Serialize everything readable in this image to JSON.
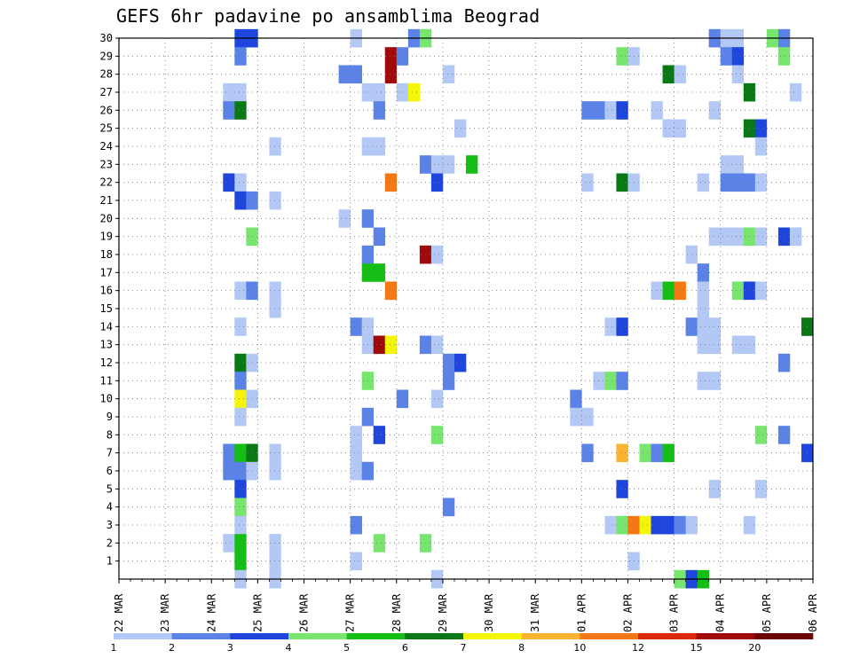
{
  "chart_data": {
    "type": "heatmap",
    "title": "GEFS 6hr padavine po ansamblima Beograd",
    "xlabel": "",
    "ylabel": "",
    "y_ticks": [
      "1",
      "2",
      "3",
      "4",
      "5",
      "6",
      "7",
      "8",
      "9",
      "10",
      "11",
      "12",
      "13",
      "14",
      "15",
      "16",
      "17",
      "18",
      "19",
      "20",
      "21",
      "22",
      "23",
      "24",
      "25",
      "26",
      "27",
      "28",
      "29",
      "30"
    ],
    "x_ticks": [
      "22 MAR",
      "23 MAR",
      "24 MAR",
      "25 MAR",
      "26 MAR",
      "27 MAR",
      "28 MAR",
      "29 MAR",
      "30 MAR",
      "31 MAR",
      "01 APR",
      "02 APR",
      "03 APR",
      "04 APR",
      "05 APR",
      "06 APR"
    ],
    "grid": true,
    "legend_placement": "bottom",
    "legend_labels": [
      "1",
      "2",
      "3",
      "4",
      "5",
      "6",
      "7",
      "8",
      "10",
      "12",
      "15",
      "20"
    ],
    "color_levels": [
      "#b4c8f5",
      "#5b82e6",
      "#1e46dc",
      "#78e66e",
      "#14be14",
      "#0a7814",
      "#f5f50a",
      "#fab432",
      "#f57814",
      "#dc280a",
      "#a00a0a",
      "#6e0505"
    ],
    "cells_note_x_unit": "day offset from 22 MAR 00z (6-hour steps)",
    "cells": [
      {
        "x": 2.5,
        "y": 30,
        "level": 2
      },
      {
        "x": 2.75,
        "y": 30,
        "level": 2
      },
      {
        "x": 5.0,
        "y": 30,
        "level": 0
      },
      {
        "x": 6.25,
        "y": 30,
        "level": 1
      },
      {
        "x": 6.5,
        "y": 30,
        "level": 3
      },
      {
        "x": 12.75,
        "y": 30,
        "level": 1
      },
      {
        "x": 13.0,
        "y": 30,
        "level": 0
      },
      {
        "x": 13.25,
        "y": 30,
        "level": 0
      },
      {
        "x": 14.0,
        "y": 30,
        "level": 3
      },
      {
        "x": 14.25,
        "y": 30,
        "level": 1
      },
      {
        "x": 2.5,
        "y": 29,
        "level": 1
      },
      {
        "x": 5.75,
        "y": 29,
        "level": 10
      },
      {
        "x": 6.0,
        "y": 29,
        "level": 1
      },
      {
        "x": 10.75,
        "y": 29,
        "level": 3
      },
      {
        "x": 11.0,
        "y": 29,
        "level": 0
      },
      {
        "x": 13.0,
        "y": 29,
        "level": 1
      },
      {
        "x": 13.25,
        "y": 29,
        "level": 2
      },
      {
        "x": 14.25,
        "y": 29,
        "level": 3
      },
      {
        "x": 4.75,
        "y": 28,
        "level": 1
      },
      {
        "x": 5.0,
        "y": 28,
        "level": 1
      },
      {
        "x": 5.75,
        "y": 28,
        "level": 10
      },
      {
        "x": 7.0,
        "y": 28,
        "level": 0
      },
      {
        "x": 11.75,
        "y": 28,
        "level": 5
      },
      {
        "x": 12.0,
        "y": 28,
        "level": 0
      },
      {
        "x": 13.25,
        "y": 28,
        "level": 0
      },
      {
        "x": 2.25,
        "y": 27,
        "level": 0
      },
      {
        "x": 2.5,
        "y": 27,
        "level": 0
      },
      {
        "x": 5.25,
        "y": 27,
        "level": 0
      },
      {
        "x": 5.5,
        "y": 27,
        "level": 0
      },
      {
        "x": 6.0,
        "y": 27,
        "level": 0
      },
      {
        "x": 6.25,
        "y": 27,
        "level": 6
      },
      {
        "x": 13.5,
        "y": 27,
        "level": 5
      },
      {
        "x": 14.5,
        "y": 27,
        "level": 0
      },
      {
        "x": 2.25,
        "y": 26,
        "level": 1
      },
      {
        "x": 2.5,
        "y": 26,
        "level": 5
      },
      {
        "x": 5.5,
        "y": 26,
        "level": 1
      },
      {
        "x": 10.0,
        "y": 26,
        "level": 1
      },
      {
        "x": 10.25,
        "y": 26,
        "level": 1
      },
      {
        "x": 10.5,
        "y": 26,
        "level": 0
      },
      {
        "x": 10.75,
        "y": 26,
        "level": 2
      },
      {
        "x": 11.5,
        "y": 26,
        "level": 0
      },
      {
        "x": 12.75,
        "y": 26,
        "level": 0
      },
      {
        "x": 7.25,
        "y": 25,
        "level": 0
      },
      {
        "x": 11.75,
        "y": 25,
        "level": 0
      },
      {
        "x": 12.0,
        "y": 25,
        "level": 0
      },
      {
        "x": 13.5,
        "y": 25,
        "level": 5
      },
      {
        "x": 13.75,
        "y": 25,
        "level": 2
      },
      {
        "x": 3.25,
        "y": 24,
        "level": 0
      },
      {
        "x": 5.25,
        "y": 24,
        "level": 0
      },
      {
        "x": 5.5,
        "y": 24,
        "level": 0
      },
      {
        "x": 13.75,
        "y": 24,
        "level": 0
      },
      {
        "x": 6.5,
        "y": 23,
        "level": 1
      },
      {
        "x": 6.75,
        "y": 23,
        "level": 0
      },
      {
        "x": 7.0,
        "y": 23,
        "level": 0
      },
      {
        "x": 7.5,
        "y": 23,
        "level": 4
      },
      {
        "x": 13.0,
        "y": 23,
        "level": 0
      },
      {
        "x": 13.25,
        "y": 23,
        "level": 0
      },
      {
        "x": 2.25,
        "y": 22,
        "level": 2
      },
      {
        "x": 2.5,
        "y": 22,
        "level": 0
      },
      {
        "x": 5.75,
        "y": 22,
        "level": 8
      },
      {
        "x": 6.75,
        "y": 22,
        "level": 2
      },
      {
        "x": 10.0,
        "y": 22,
        "level": 0
      },
      {
        "x": 10.75,
        "y": 22,
        "level": 5
      },
      {
        "x": 11.0,
        "y": 22,
        "level": 0
      },
      {
        "x": 12.5,
        "y": 22,
        "level": 0
      },
      {
        "x": 13.0,
        "y": 22,
        "level": 1
      },
      {
        "x": 13.25,
        "y": 22,
        "level": 1
      },
      {
        "x": 13.5,
        "y": 22,
        "level": 1
      },
      {
        "x": 13.75,
        "y": 22,
        "level": 0
      },
      {
        "x": 2.5,
        "y": 21,
        "level": 2
      },
      {
        "x": 2.75,
        "y": 21,
        "level": 1
      },
      {
        "x": 3.25,
        "y": 21,
        "level": 0
      },
      {
        "x": 4.75,
        "y": 20,
        "level": 0
      },
      {
        "x": 5.25,
        "y": 20,
        "level": 1
      },
      {
        "x": 2.75,
        "y": 19,
        "level": 3
      },
      {
        "x": 5.5,
        "y": 19,
        "level": 1
      },
      {
        "x": 12.75,
        "y": 19,
        "level": 0
      },
      {
        "x": 13.0,
        "y": 19,
        "level": 0
      },
      {
        "x": 13.25,
        "y": 19,
        "level": 0
      },
      {
        "x": 13.5,
        "y": 19,
        "level": 3
      },
      {
        "x": 13.75,
        "y": 19,
        "level": 0
      },
      {
        "x": 14.25,
        "y": 19,
        "level": 2
      },
      {
        "x": 14.5,
        "y": 19,
        "level": 0
      },
      {
        "x": 5.25,
        "y": 18,
        "level": 1
      },
      {
        "x": 6.5,
        "y": 18,
        "level": 10
      },
      {
        "x": 6.75,
        "y": 18,
        "level": 0
      },
      {
        "x": 12.25,
        "y": 18,
        "level": 0
      },
      {
        "x": 5.25,
        "y": 17,
        "level": 4
      },
      {
        "x": 5.5,
        "y": 17,
        "level": 4
      },
      {
        "x": 12.5,
        "y": 17,
        "level": 1
      },
      {
        "x": 2.5,
        "y": 16,
        "level": 0
      },
      {
        "x": 2.75,
        "y": 16,
        "level": 1
      },
      {
        "x": 3.25,
        "y": 16,
        "level": 0
      },
      {
        "x": 5.75,
        "y": 16,
        "level": 8
      },
      {
        "x": 11.5,
        "y": 16,
        "level": 0
      },
      {
        "x": 11.75,
        "y": 16,
        "level": 4
      },
      {
        "x": 12.0,
        "y": 16,
        "level": 8
      },
      {
        "x": 12.5,
        "y": 16,
        "level": 0
      },
      {
        "x": 13.25,
        "y": 16,
        "level": 3
      },
      {
        "x": 13.5,
        "y": 16,
        "level": 2
      },
      {
        "x": 13.75,
        "y": 16,
        "level": 0
      },
      {
        "x": 3.25,
        "y": 15,
        "level": 0
      },
      {
        "x": 12.5,
        "y": 15,
        "level": 0
      },
      {
        "x": 2.5,
        "y": 14,
        "level": 0
      },
      {
        "x": 5.0,
        "y": 14,
        "level": 1
      },
      {
        "x": 5.25,
        "y": 14,
        "level": 0
      },
      {
        "x": 10.5,
        "y": 14,
        "level": 0
      },
      {
        "x": 10.75,
        "y": 14,
        "level": 2
      },
      {
        "x": 12.25,
        "y": 14,
        "level": 1
      },
      {
        "x": 12.5,
        "y": 14,
        "level": 0
      },
      {
        "x": 12.75,
        "y": 14,
        "level": 0
      },
      {
        "x": 14.75,
        "y": 14,
        "level": 5
      },
      {
        "x": 5.25,
        "y": 13,
        "level": 0
      },
      {
        "x": 5.5,
        "y": 13,
        "level": 10
      },
      {
        "x": 5.75,
        "y": 13,
        "level": 6
      },
      {
        "x": 6.5,
        "y": 13,
        "level": 1
      },
      {
        "x": 6.75,
        "y": 13,
        "level": 0
      },
      {
        "x": 12.5,
        "y": 13,
        "level": 0
      },
      {
        "x": 12.75,
        "y": 13,
        "level": 0
      },
      {
        "x": 13.25,
        "y": 13,
        "level": 0
      },
      {
        "x": 13.5,
        "y": 13,
        "level": 0
      },
      {
        "x": 2.5,
        "y": 12,
        "level": 5
      },
      {
        "x": 2.75,
        "y": 12,
        "level": 0
      },
      {
        "x": 7.0,
        "y": 12,
        "level": 1
      },
      {
        "x": 7.25,
        "y": 12,
        "level": 2
      },
      {
        "x": 14.25,
        "y": 12,
        "level": 1
      },
      {
        "x": 2.5,
        "y": 11,
        "level": 1
      },
      {
        "x": 5.25,
        "y": 11,
        "level": 3
      },
      {
        "x": 7.0,
        "y": 11,
        "level": 1
      },
      {
        "x": 10.25,
        "y": 11,
        "level": 0
      },
      {
        "x": 10.5,
        "y": 11,
        "level": 3
      },
      {
        "x": 10.75,
        "y": 11,
        "level": 1
      },
      {
        "x": 12.5,
        "y": 11,
        "level": 0
      },
      {
        "x": 12.75,
        "y": 11,
        "level": 0
      },
      {
        "x": 2.5,
        "y": 10,
        "level": 6
      },
      {
        "x": 2.75,
        "y": 10,
        "level": 0
      },
      {
        "x": 6.0,
        "y": 10,
        "level": 1
      },
      {
        "x": 6.75,
        "y": 10,
        "level": 0
      },
      {
        "x": 9.75,
        "y": 10,
        "level": 1
      },
      {
        "x": 2.5,
        "y": 9,
        "level": 0
      },
      {
        "x": 5.25,
        "y": 9,
        "level": 1
      },
      {
        "x": 9.75,
        "y": 9,
        "level": 0
      },
      {
        "x": 10.0,
        "y": 9,
        "level": 0
      },
      {
        "x": 5.0,
        "y": 8,
        "level": 0
      },
      {
        "x": 5.5,
        "y": 8,
        "level": 2
      },
      {
        "x": 6.75,
        "y": 8,
        "level": 3
      },
      {
        "x": 13.75,
        "y": 8,
        "level": 3
      },
      {
        "x": 14.25,
        "y": 8,
        "level": 1
      },
      {
        "x": 2.25,
        "y": 7,
        "level": 1
      },
      {
        "x": 2.5,
        "y": 7,
        "level": 4
      },
      {
        "x": 2.75,
        "y": 7,
        "level": 5
      },
      {
        "x": 3.25,
        "y": 7,
        "level": 0
      },
      {
        "x": 5.0,
        "y": 7,
        "level": 0
      },
      {
        "x": 10.0,
        "y": 7,
        "level": 1
      },
      {
        "x": 10.75,
        "y": 7,
        "level": 7
      },
      {
        "x": 11.25,
        "y": 7,
        "level": 3
      },
      {
        "x": 11.5,
        "y": 7,
        "level": 1
      },
      {
        "x": 11.75,
        "y": 7,
        "level": 4
      },
      {
        "x": 14.75,
        "y": 7,
        "level": 2
      },
      {
        "x": 2.25,
        "y": 6,
        "level": 1
      },
      {
        "x": 2.5,
        "y": 6,
        "level": 1
      },
      {
        "x": 2.75,
        "y": 6,
        "level": 0
      },
      {
        "x": 3.25,
        "y": 6,
        "level": 0
      },
      {
        "x": 5.0,
        "y": 6,
        "level": 0
      },
      {
        "x": 5.25,
        "y": 6,
        "level": 1
      },
      {
        "x": 2.5,
        "y": 5,
        "level": 2
      },
      {
        "x": 10.75,
        "y": 5,
        "level": 2
      },
      {
        "x": 12.75,
        "y": 5,
        "level": 0
      },
      {
        "x": 13.75,
        "y": 5,
        "level": 0
      },
      {
        "x": 2.5,
        "y": 4,
        "level": 3
      },
      {
        "x": 7.0,
        "y": 4,
        "level": 1
      },
      {
        "x": 2.5,
        "y": 3,
        "level": 0
      },
      {
        "x": 5.0,
        "y": 3,
        "level": 1
      },
      {
        "x": 10.5,
        "y": 3,
        "level": 0
      },
      {
        "x": 10.75,
        "y": 3,
        "level": 3
      },
      {
        "x": 11.0,
        "y": 3,
        "level": 8
      },
      {
        "x": 11.25,
        "y": 3,
        "level": 6
      },
      {
        "x": 11.5,
        "y": 3,
        "level": 2
      },
      {
        "x": 11.75,
        "y": 3,
        "level": 2
      },
      {
        "x": 12.0,
        "y": 3,
        "level": 1
      },
      {
        "x": 12.25,
        "y": 3,
        "level": 0
      },
      {
        "x": 13.5,
        "y": 3,
        "level": 0
      },
      {
        "x": 2.25,
        "y": 2,
        "level": 0
      },
      {
        "x": 2.5,
        "y": 2,
        "level": 4
      },
      {
        "x": 3.25,
        "y": 2,
        "level": 0
      },
      {
        "x": 5.5,
        "y": 2,
        "level": 3
      },
      {
        "x": 6.5,
        "y": 2,
        "level": 3
      },
      {
        "x": 2.5,
        "y": 1,
        "level": 4
      },
      {
        "x": 3.25,
        "y": 1,
        "level": 0
      },
      {
        "x": 5.0,
        "y": 1,
        "level": 0
      },
      {
        "x": 11.0,
        "y": 1,
        "level": 0
      },
      {
        "x": 2.5,
        "y": 0,
        "level": 0
      },
      {
        "x": 3.25,
        "y": 0,
        "level": 0
      },
      {
        "x": 6.75,
        "y": 0,
        "level": 0
      },
      {
        "x": 12.0,
        "y": 0,
        "level": 3
      },
      {
        "x": 12.25,
        "y": 0,
        "level": 2
      },
      {
        "x": 12.5,
        "y": 0,
        "level": 4
      }
    ]
  }
}
